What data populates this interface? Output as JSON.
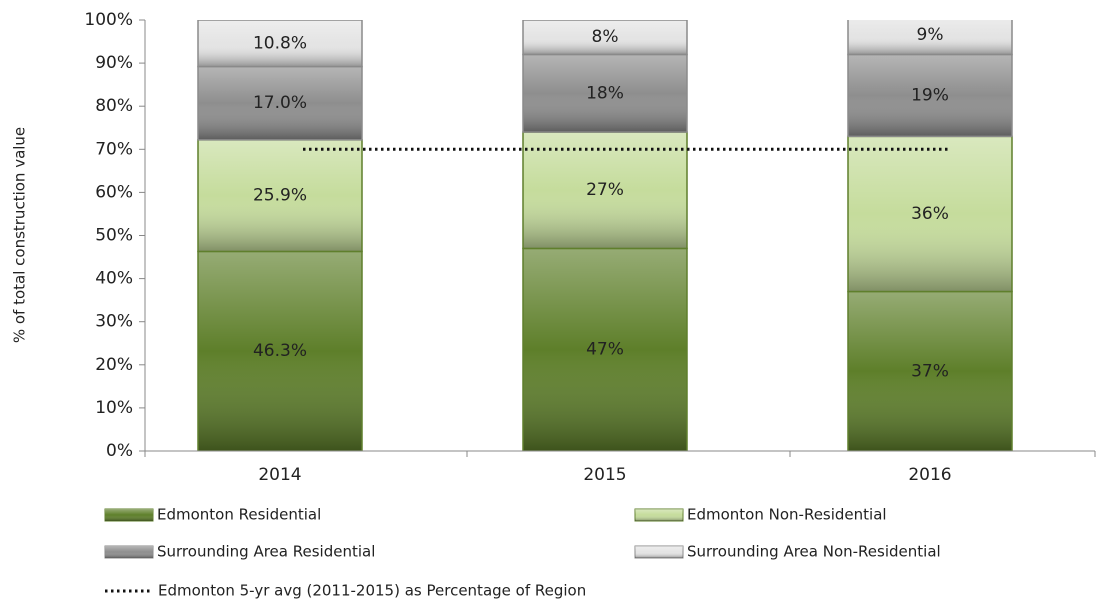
{
  "chart_data": {
    "type": "stacked_bar",
    "y_label": "% of total construction value",
    "categories": [
      "2014",
      "2015",
      "2016"
    ],
    "series": [
      {
        "name": "Edmonton Residential",
        "color": "#5e7f2a",
        "values": [
          46.3,
          47,
          37
        ],
        "value_labels": [
          "46.3%",
          "47%",
          "37%"
        ]
      },
      {
        "name": "Edmonton Non-Residential",
        "color": "#c5dc9c",
        "values": [
          25.9,
          27,
          36
        ],
        "value_labels": [
          "25.9%",
          "27%",
          "36%"
        ]
      },
      {
        "name": "Surrounding Area Residential",
        "color": "#8e8e8e",
        "values": [
          17.0,
          18,
          19
        ],
        "value_labels": [
          "17.0%",
          "18%",
          "19%"
        ]
      },
      {
        "name": "Surrounding Area Non-Residential",
        "color": "#e4e4e4",
        "values": [
          10.8,
          8,
          9
        ],
        "value_labels": [
          "10.8%",
          "8%",
          "9%"
        ]
      }
    ],
    "reference_line": {
      "name": "Edmonton 5-yr avg (2011-2015) as  Percentage of Region",
      "value": 70,
      "color": "#111111"
    },
    "ylim": [
      0,
      100
    ],
    "yticks": [
      {
        "value": 0,
        "label": "0%"
      },
      {
        "value": 10,
        "label": "10%"
      },
      {
        "value": 20,
        "label": "20%"
      },
      {
        "value": 30,
        "label": "30%"
      },
      {
        "value": 40,
        "label": "40%"
      },
      {
        "value": 50,
        "label": "50%"
      },
      {
        "value": 60,
        "label": "60%"
      },
      {
        "value": 70,
        "label": "70%"
      },
      {
        "value": 80,
        "label": "80%"
      },
      {
        "value": 90,
        "label": "90%"
      },
      {
        "value": 100,
        "label": "100%"
      }
    ],
    "legend": "bottom"
  }
}
